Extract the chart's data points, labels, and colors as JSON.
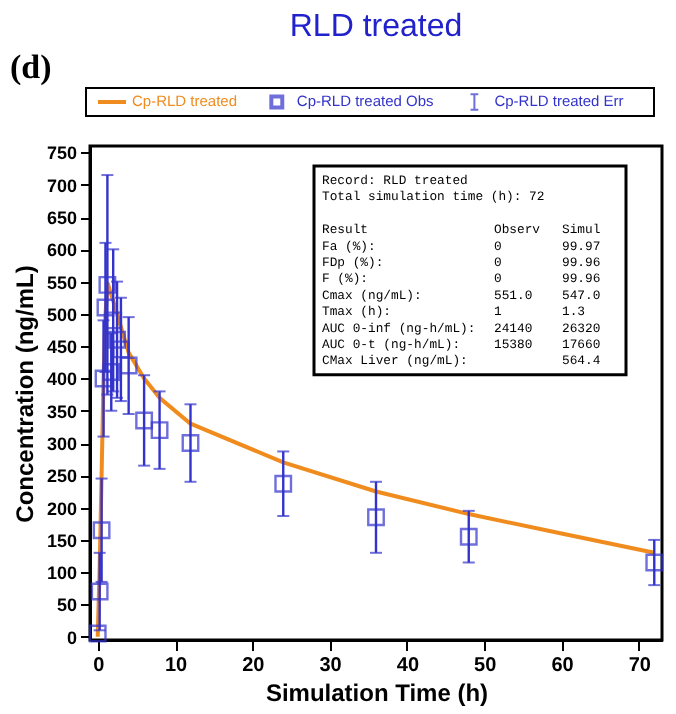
{
  "chart_data": {
    "type": "line",
    "title": "RLD treated",
    "xlabel": "Simulation Time (h)",
    "ylabel": "Concentration (ng/mL)",
    "xlim": [
      -1,
      73
    ],
    "xticks": [
      0,
      10,
      20,
      30,
      40,
      50,
      60,
      70
    ],
    "ylim": [
      -5,
      760
    ],
    "yticks": [
      0,
      50,
      100,
      150,
      200,
      250,
      300,
      350,
      400,
      450,
      500,
      550,
      600,
      650,
      700,
      750
    ],
    "grid": false,
    "legend": "top",
    "series": [
      {
        "name": "Cp-RLD treated",
        "color": "#f08c1e",
        "marker": "none",
        "x": [
          0,
          0.25,
          0.5,
          0.75,
          1,
          1.3,
          2,
          3,
          4,
          6,
          8,
          12,
          24,
          36,
          48,
          60,
          72
        ],
        "values": [
          0,
          110,
          250,
          400,
          500,
          547,
          520,
          480,
          440,
          400,
          370,
          330,
          270,
          225,
          190,
          160,
          130
        ]
      },
      {
        "name": "Cp-RLD treated Obs",
        "type": "scatter",
        "color": "#3333cc",
        "marker": "square",
        "x": [
          0,
          0.25,
          0.5,
          0.75,
          1,
          1.25,
          1.75,
          2,
          2.5,
          3,
          4,
          6,
          8,
          12,
          24,
          36,
          48,
          72
        ],
        "values": [
          5,
          70,
          165,
          400,
          510,
          545,
          410,
          490,
          460,
          445,
          420,
          335,
          320,
          300,
          237,
          185,
          155,
          115
        ],
        "errors": [
          null,
          60,
          80,
          90,
          100,
          170,
          60,
          110,
          90,
          80,
          75,
          70,
          60,
          60,
          50,
          55,
          40,
          35
        ]
      }
    ],
    "annotations": [
      "(d)",
      "Cp-RLD treated Err",
      "Record:    RLD treated",
      "Total simulation time (h):    72",
      "Result",
      "Observ",
      "Simul",
      "Fa (%):",
      "0",
      "99.97",
      "FDp (%):",
      "0",
      "99.96",
      "F (%):",
      "0",
      "99.96",
      "Cmax (ng/mL):",
      "551.0",
      "547.0",
      "Tmax (h):",
      "1",
      "1.3",
      "AUC 0-inf (ng-h/mL):",
      "24140",
      "26320",
      "AUC 0-t (ng-h/mL):",
      "15380",
      "17660",
      "CMax Liver (ng/mL):",
      null,
      "564.4"
    ]
  }
}
